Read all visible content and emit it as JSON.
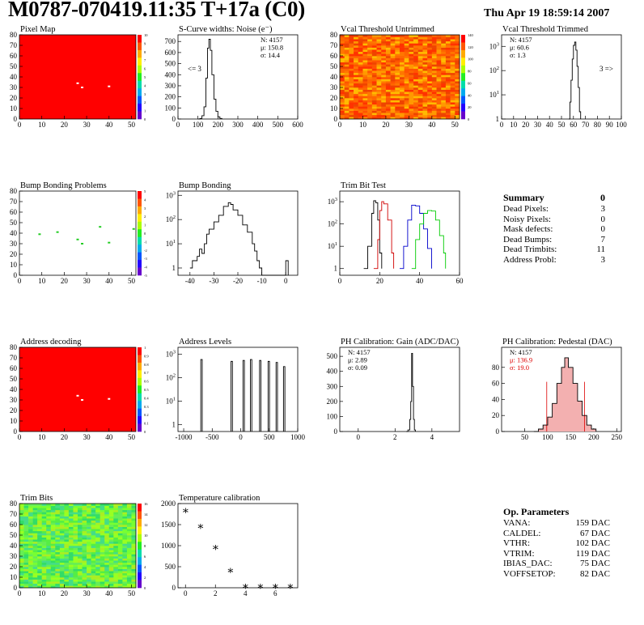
{
  "title": "M0787-070419.11:35 T+17a (C0)",
  "date": "Thu Apr 19 18:59:14 2007",
  "colors": {
    "map_red": "#ff0000",
    "curve": "#000000",
    "red": "#d00000",
    "blue": "#0000cc",
    "green": "#00cc00",
    "stat_red": "#dd0000"
  },
  "chart_data": [
    {
      "id": "pixel-map",
      "type": "heatmap",
      "title": "Pixel Map",
      "xlim": [
        0,
        52
      ],
      "ylim": [
        0,
        80
      ],
      "xticks": [
        0,
        10,
        20,
        30,
        40,
        50
      ],
      "yticks": [
        0,
        10,
        20,
        30,
        40,
        50,
        60,
        70,
        80
      ],
      "zticks": [
        0,
        1,
        2,
        3,
        4,
        5,
        6,
        7,
        8,
        9,
        10
      ],
      "fill": "red",
      "defects": [
        {
          "col": 26,
          "row": 34
        },
        {
          "col": 28,
          "row": 30
        },
        {
          "col": 40,
          "row": 31
        }
      ]
    },
    {
      "id": "scurve-noise",
      "type": "line",
      "title": "S-Curve widths: Noise (e⁻)",
      "xlim": [
        0,
        600
      ],
      "ylim": [
        0,
        760
      ],
      "xticks": [
        0,
        100,
        200,
        300,
        400,
        500,
        600
      ],
      "yticks": [
        0,
        100,
        200,
        300,
        400,
        500,
        600,
        700
      ],
      "stats": [
        "N: 4157",
        "μ: 150.8",
        "σ: 14.4"
      ],
      "annotation": "<= 3",
      "points": [
        [
          100,
          0
        ],
        [
          110,
          5
        ],
        [
          120,
          30
        ],
        [
          130,
          110
        ],
        [
          140,
          370
        ],
        [
          148,
          640
        ],
        [
          155,
          720
        ],
        [
          162,
          620
        ],
        [
          170,
          400
        ],
        [
          180,
          180
        ],
        [
          190,
          70
        ],
        [
          200,
          20
        ],
        [
          210,
          5
        ],
        [
          220,
          0
        ]
      ]
    },
    {
      "id": "vcal-untrimmed",
      "type": "heatmap",
      "title": "Vcal Threshold Untrimmed",
      "xlim": [
        0,
        52
      ],
      "ylim": [
        0,
        80
      ],
      "xticks": [
        0,
        10,
        20,
        30,
        40,
        50
      ],
      "yticks": [
        0,
        10,
        20,
        30,
        40,
        50,
        60,
        70,
        80
      ],
      "zticks": [
        0,
        20,
        40,
        60,
        80,
        100,
        120,
        140
      ],
      "fill": "noise"
    },
    {
      "id": "vcal-trimmed",
      "type": "line",
      "title": "Vcal Threshold Trimmed",
      "log_y": true,
      "xlim": [
        0,
        100
      ],
      "ylim": [
        1,
        3000
      ],
      "xticks": [
        0,
        10,
        20,
        30,
        40,
        50,
        60,
        70,
        80,
        90,
        100
      ],
      "stats": [
        "N: 4157",
        "μ: 60.6",
        "σ:  1.3"
      ],
      "annotation": "3 =>",
      "points": [
        [
          56,
          1
        ],
        [
          57,
          5
        ],
        [
          58,
          40
        ],
        [
          59,
          300
        ],
        [
          60,
          1100
        ],
        [
          61,
          1500
        ],
        [
          62,
          700
        ],
        [
          63,
          150
        ],
        [
          64,
          20
        ],
        [
          65,
          2
        ],
        [
          66,
          1
        ]
      ]
    },
    {
      "id": "bump-bonding-problems",
      "type": "heatmap",
      "title": "Bump Bonding Problems",
      "xlim": [
        0,
        52
      ],
      "ylim": [
        0,
        80
      ],
      "xticks": [
        0,
        10,
        20,
        30,
        40,
        50
      ],
      "yticks": [
        0,
        10,
        20,
        30,
        40,
        50,
        60,
        70,
        80
      ],
      "zticks": [
        -5,
        -4,
        -3,
        -2,
        -1,
        0,
        1,
        2,
        3,
        4,
        5
      ],
      "fill": "white",
      "defects": [
        {
          "col": 9,
          "row": 39
        },
        {
          "col": 17,
          "row": 41
        },
        {
          "col": 26,
          "row": 34
        },
        {
          "col": 28,
          "row": 30
        },
        {
          "col": 36,
          "row": 46
        },
        {
          "col": 40,
          "row": 31
        },
        {
          "col": 51,
          "row": 44
        }
      ]
    },
    {
      "id": "bump-bonding",
      "type": "line",
      "title": "Bump Bonding",
      "log_y": true,
      "xlim": [
        -45,
        5
      ],
      "ylim": [
        0.5,
        1500
      ],
      "xticks": [
        -40,
        -30,
        -20,
        -10,
        0
      ],
      "points": [
        [
          -40,
          1
        ],
        [
          -39,
          2
        ],
        [
          -37,
          3
        ],
        [
          -36,
          6
        ],
        [
          -35,
          4
        ],
        [
          -34,
          10
        ],
        [
          -33,
          25
        ],
        [
          -32,
          40
        ],
        [
          -30,
          80
        ],
        [
          -28,
          150
        ],
        [
          -26,
          350
        ],
        [
          -24,
          500
        ],
        [
          -23,
          420
        ],
        [
          -22,
          250
        ],
        [
          -20,
          150
        ],
        [
          -18,
          60
        ],
        [
          -16,
          30
        ],
        [
          -14,
          10
        ],
        [
          -13,
          5
        ],
        [
          -12,
          2
        ],
        [
          -11,
          1
        ],
        [
          -10,
          0.5
        ],
        [
          0,
          2
        ],
        [
          1,
          0.5
        ]
      ]
    },
    {
      "id": "trim-bit-test",
      "type": "line",
      "title": "Trim Bit Test",
      "log_y": true,
      "xlim": [
        0,
        60
      ],
      "ylim": [
        0.5,
        3000
      ],
      "xticks": [
        0,
        20,
        40,
        60
      ],
      "series": [
        {
          "color": "black",
          "points": [
            [
              12,
              1
            ],
            [
              14,
              10
            ],
            [
              16,
              300
            ],
            [
              17,
              1100
            ],
            [
              18,
              900
            ],
            [
              19,
              150
            ],
            [
              20,
              5
            ],
            [
              21,
              1
            ]
          ]
        },
        {
          "color": "red",
          "points": [
            [
              17,
              1
            ],
            [
              19,
              20
            ],
            [
              20,
              400
            ],
            [
              21,
              1000
            ],
            [
              22,
              800
            ],
            [
              24,
              150
            ],
            [
              26,
              5
            ],
            [
              27,
              1
            ]
          ]
        },
        {
          "color": "blue",
          "points": [
            [
              30,
              1
            ],
            [
              32,
              10
            ],
            [
              34,
              150
            ],
            [
              36,
              700
            ],
            [
              38,
              650
            ],
            [
              40,
              300
            ],
            [
              42,
              60
            ],
            [
              44,
              8
            ],
            [
              46,
              1
            ]
          ]
        },
        {
          "color": "green",
          "points": [
            [
              36,
              1
            ],
            [
              38,
              20
            ],
            [
              40,
              100
            ],
            [
              42,
              300
            ],
            [
              44,
              400
            ],
            [
              46,
              380
            ],
            [
              48,
              150
            ],
            [
              50,
              30
            ],
            [
              52,
              5
            ],
            [
              53,
              1
            ]
          ]
        }
      ]
    },
    {
      "id": "address-decoding",
      "type": "heatmap",
      "title": "Address decoding",
      "xlim": [
        0,
        52
      ],
      "ylim": [
        0,
        80
      ],
      "xticks": [
        0,
        10,
        20,
        30,
        40,
        50
      ],
      "yticks": [
        0,
        10,
        20,
        30,
        40,
        50,
        60,
        70,
        80
      ],
      "zticks": [
        0,
        0.1,
        0.2,
        0.3,
        0.4,
        0.5,
        0.6,
        0.7,
        0.8,
        0.9,
        1
      ],
      "fill": "red",
      "defects": [
        {
          "col": 26,
          "row": 34
        },
        {
          "col": 28,
          "row": 30
        },
        {
          "col": 40,
          "row": 31
        }
      ]
    },
    {
      "id": "address-levels",
      "type": "line",
      "title": "Address Levels",
      "log_y": true,
      "xlim": [
        -1100,
        1000
      ],
      "ylim": [
        0.5,
        2000
      ],
      "xticks": [
        -1000,
        -500,
        0,
        500,
        1000
      ],
      "peaks": [
        -700,
        -170,
        40,
        170,
        330,
        480,
        620,
        750
      ],
      "peak_heights": [
        600,
        500,
        550,
        600,
        550,
        500,
        450,
        300
      ]
    },
    {
      "id": "ph-gain",
      "type": "line",
      "title": "PH Calibration: Gain (ADC/DAC)",
      "xlim": [
        -1,
        5.5
      ],
      "ylim": [
        0,
        560
      ],
      "xticks": [
        0,
        2,
        4
      ],
      "yticks": [
        0,
        100,
        200,
        300,
        400,
        500
      ],
      "stats": [
        "N: 4157",
        "μ: 2.89",
        "σ: 0.09"
      ],
      "points": [
        [
          2.6,
          0
        ],
        [
          2.7,
          10
        ],
        [
          2.8,
          80
        ],
        [
          2.85,
          200
        ],
        [
          2.9,
          520
        ],
        [
          2.95,
          300
        ],
        [
          3.0,
          80
        ],
        [
          3.05,
          10
        ],
        [
          3.1,
          0
        ]
      ]
    },
    {
      "id": "ph-pedestal",
      "type": "line",
      "title": "PH Calibration: Pedestal (DAC)",
      "xlim": [
        0,
        260
      ],
      "ylim": [
        0,
        105
      ],
      "xticks": [
        50,
        100,
        150,
        200,
        250
      ],
      "yticks": [
        0,
        20,
        40,
        60,
        80
      ],
      "stats": [
        "N: 4157",
        "μ: 136.9",
        "σ: 19.0"
      ],
      "cut_lines": [
        98,
        180
      ],
      "points": [
        [
          70,
          0
        ],
        [
          80,
          3
        ],
        [
          90,
          8
        ],
        [
          100,
          18
        ],
        [
          110,
          35
        ],
        [
          120,
          60
        ],
        [
          130,
          80
        ],
        [
          137,
          92
        ],
        [
          145,
          80
        ],
        [
          155,
          60
        ],
        [
          165,
          38
        ],
        [
          175,
          20
        ],
        [
          185,
          8
        ],
        [
          195,
          3
        ],
        [
          205,
          0
        ]
      ]
    },
    {
      "id": "trim-bits",
      "type": "heatmap",
      "title": "Trim Bits",
      "xlim": [
        0,
        52
      ],
      "ylim": [
        0,
        80
      ],
      "xticks": [
        0,
        10,
        20,
        30,
        40,
        50
      ],
      "yticks": [
        0,
        10,
        20,
        30,
        40,
        50,
        60,
        70,
        80
      ],
      "zticks": [
        0,
        2,
        4,
        6,
        8,
        10,
        12,
        14,
        16
      ],
      "fill": "green-noise"
    },
    {
      "id": "temperature-calibration",
      "type": "scatter",
      "title": "Temperature calibration",
      "xlim": [
        -0.5,
        7.5
      ],
      "ylim": [
        0,
        2000
      ],
      "xticks": [
        0,
        2,
        4,
        6
      ],
      "yticks": [
        0,
        500,
        1000,
        1500,
        2000
      ],
      "points": [
        [
          0,
          1830
        ],
        [
          1,
          1450
        ],
        [
          2,
          950
        ],
        [
          3,
          400
        ],
        [
          4,
          30
        ],
        [
          5,
          30
        ],
        [
          6,
          30
        ],
        [
          7,
          30
        ]
      ]
    }
  ],
  "summary": {
    "header": {
      "label": "Summary",
      "value": "0"
    },
    "rows": [
      {
        "label": "Dead Pixels:",
        "value": "3"
      },
      {
        "label": "Noisy Pixels:",
        "value": "0"
      },
      {
        "label": "Mask defects:",
        "value": "0"
      },
      {
        "label": "Dead Bumps:",
        "value": "7"
      },
      {
        "label": "Dead Trimbits:",
        "value": "11"
      },
      {
        "label": "Address Probl:",
        "value": "3"
      }
    ]
  },
  "parameters": {
    "header": "Op. Parameters",
    "rows": [
      {
        "label": "VANA:",
        "value": "159 DAC"
      },
      {
        "label": "CALDEL:",
        "value": "67 DAC"
      },
      {
        "label": "VTHR:",
        "value": "102 DAC"
      },
      {
        "label": "VTRIM:",
        "value": "119 DAC"
      },
      {
        "label": "IBIAS_DAC:",
        "value": "75 DAC"
      },
      {
        "label": "VOFFSETOP:",
        "value": "82 DAC"
      }
    ]
  }
}
